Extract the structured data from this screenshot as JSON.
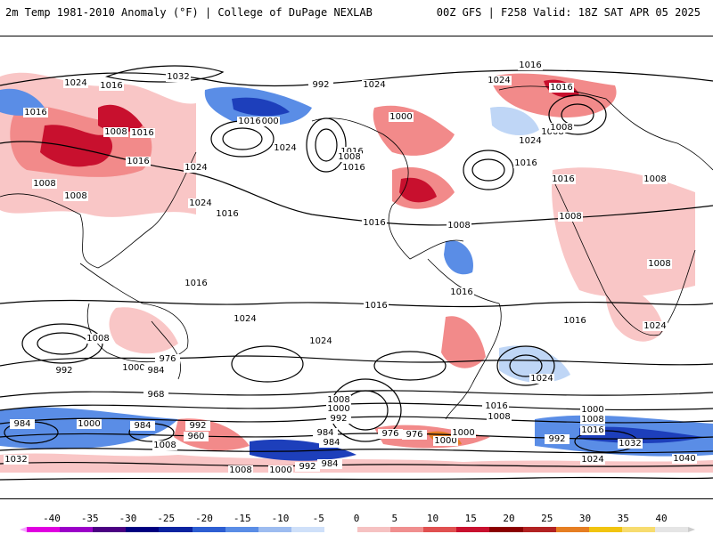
{
  "header": {
    "title_left": "2m Temp 1981-2010 Anomaly (°F) | College of DuPage NEXLAB",
    "title_right": "00Z GFS | F258 Valid: 18Z SAT APR 05 2025"
  },
  "map": {
    "contour_labels": [
      "1032",
      "1024",
      "1016",
      "1016",
      "1000",
      "992",
      "1008",
      "1016",
      "1008",
      "1008",
      "1024",
      "1016",
      "1024",
      "1024",
      "1016",
      "1016",
      "1008",
      "1016",
      "1024",
      "1016",
      "1016",
      "1008",
      "1000",
      "1016",
      "1024",
      "1016",
      "1024",
      "1008",
      "1008",
      "1016",
      "1016",
      "1008",
      "1008",
      "1008",
      "1016",
      "1016",
      "1024",
      "1016",
      "1024",
      "1016",
      "1024",
      "1008",
      "992",
      "1000",
      "984",
      "976",
      "968",
      "1008",
      "1000",
      "992",
      "976",
      "1000",
      "984",
      "992",
      "960",
      "984",
      "1008",
      "976",
      "1000",
      "1008",
      "1016",
      "1024",
      "1032",
      "1000",
      "1008",
      "1016",
      "992",
      "984",
      "1040",
      "1032",
      "1008",
      "1000",
      "992",
      "984",
      "1016",
      "1024",
      "1000",
      "984"
    ],
    "colors": {
      "warm_light": "#f9c6c6",
      "warm_mid": "#f28a8a",
      "warm_dark": "#c8102e",
      "cool_light": "#bfd6f6",
      "cool_mid": "#5a8de6",
      "cool_dark": "#1d3fbb",
      "contour": "#000000"
    }
  },
  "colorbar": {
    "ticks": [
      "-40",
      "-35",
      "-30",
      "-25",
      "-20",
      "-15",
      "-10",
      "-5",
      "0",
      "5",
      "10",
      "15",
      "20",
      "25",
      "30",
      "35",
      "40"
    ],
    "colors": [
      "#e000e0",
      "#9b00c8",
      "#4b0082",
      "#000080",
      "#0a23a0",
      "#2d5ed2",
      "#5a8de6",
      "#9dbcf0",
      "#cfe0f9",
      "#ffffff",
      "#f6c2c2",
      "#f08f8f",
      "#e05050",
      "#c8102e",
      "#8b0000",
      "#b22222",
      "#e67e22",
      "#f1c40f",
      "#f7dc6f",
      "#e5e5e5"
    ]
  }
}
